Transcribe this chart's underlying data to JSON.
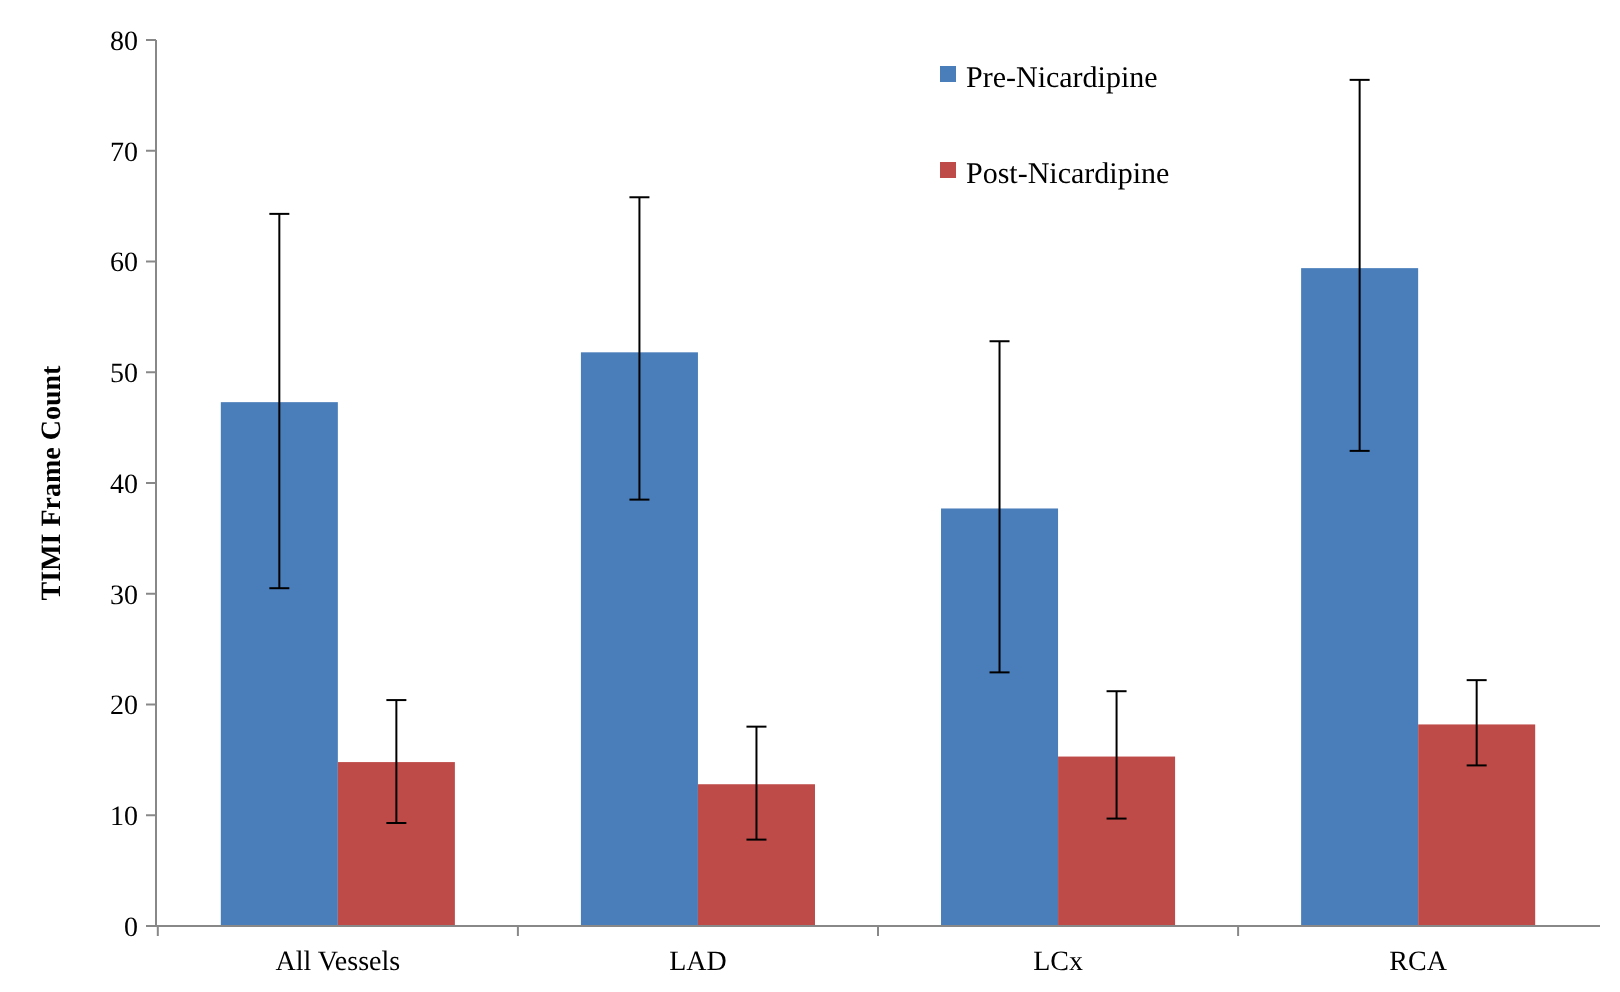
{
  "chart_data": {
    "type": "bar",
    "ylabel": "TIMI Frame Count",
    "categories": [
      "All Vessels",
      "LAD",
      "LCx",
      "RCA"
    ],
    "series": [
      {
        "name": "Pre-Nicardipine",
        "color": "#4a7ebb",
        "values": [
          47.3,
          51.8,
          37.7,
          59.4
        ],
        "errors": [
          [
            30.5,
            64.3
          ],
          [
            38.5,
            65.8
          ],
          [
            22.9,
            52.8
          ],
          [
            42.9,
            76.4
          ]
        ]
      },
      {
        "name": "Post-Nicardipine",
        "color": "#be4b48",
        "values": [
          14.8,
          12.8,
          15.3,
          18.2
        ],
        "errors": [
          [
            9.3,
            20.4
          ],
          [
            7.8,
            18
          ],
          [
            9.7,
            21.2
          ],
          [
            14.5,
            22.2
          ]
        ]
      }
    ],
    "ylim": [
      0,
      80
    ],
    "yticks": [
      0,
      10,
      20,
      30,
      40,
      50,
      60,
      70,
      80
    ],
    "legend": "top right"
  }
}
